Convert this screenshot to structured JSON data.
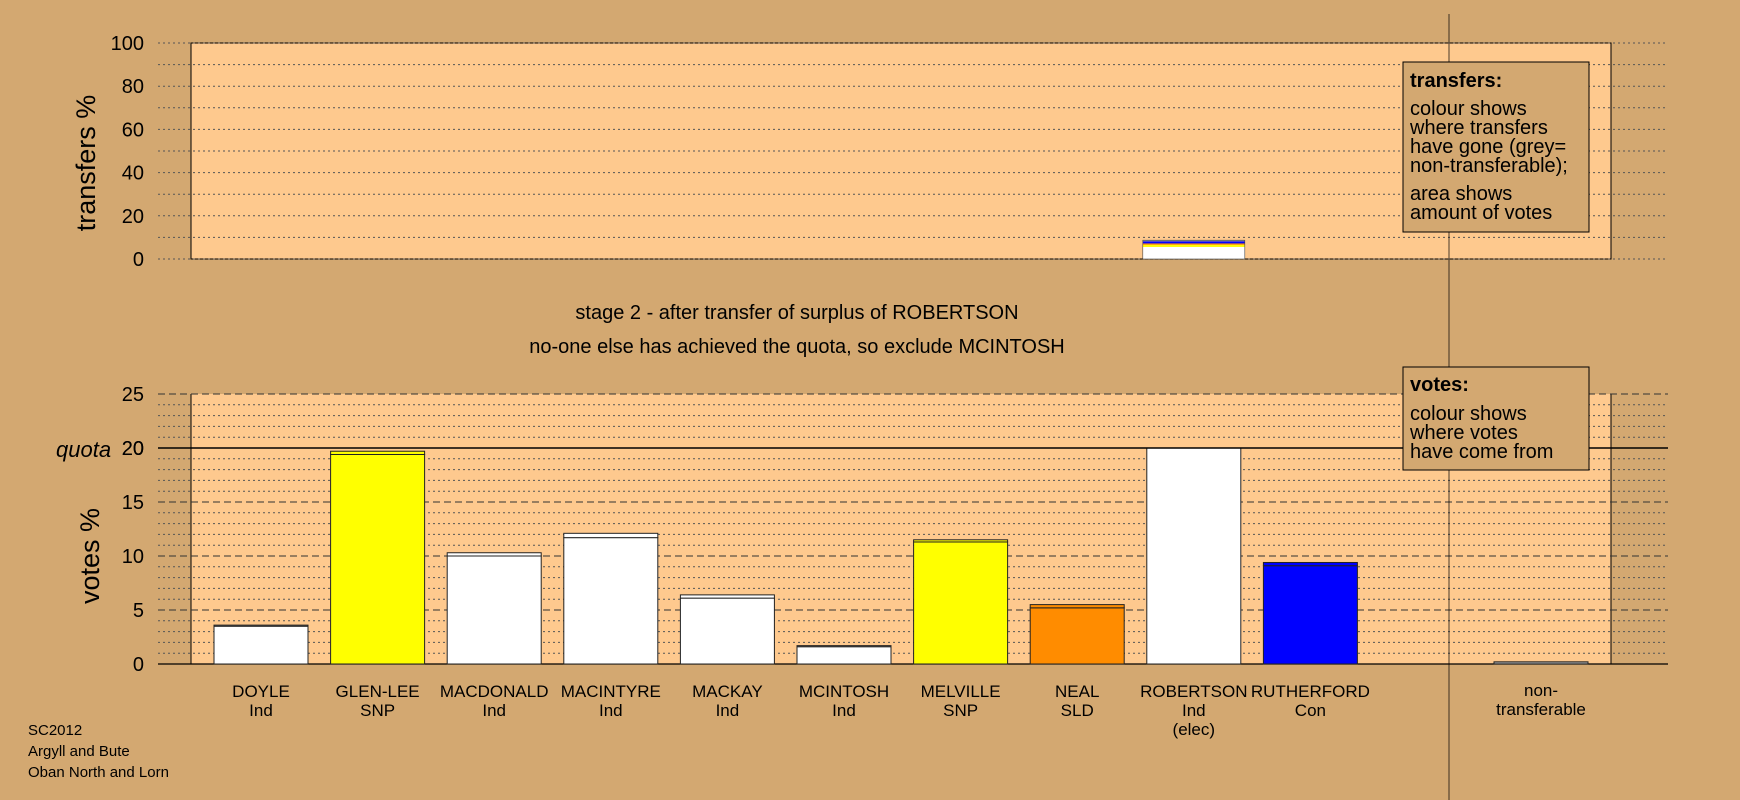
{
  "meta": {
    "code": "SC2012",
    "council": "Argyll and Bute",
    "ward": "Oban North and Lorn"
  },
  "stage": {
    "line1": "stage 2 - after transfer of surplus of ROBERTSON",
    "line2": "no-one else has achieved the quota, so exclude MCINTOSH"
  },
  "legends": {
    "transfers": {
      "title": "transfers:",
      "lines": [
        "colour shows",
        "where transfers",
        "have gone (grey=",
        "non-transferable);",
        "area shows",
        "amount of votes"
      ]
    },
    "votes": {
      "title": "votes:",
      "lines": [
        "colour shows",
        "where votes",
        "have come from"
      ]
    }
  },
  "colors": {
    "background": "#d3a871",
    "plot": "#fec98e",
    "Ind": "#ffffff",
    "SNP": "#ffff00",
    "SLD": "#ff8c00",
    "Con": "#0000ff",
    "non-transferable": "#a0a0a0"
  },
  "chart_data": [
    {
      "type": "bar",
      "name": "transfers",
      "ylabel": "transfers %",
      "ylim": [
        0,
        100
      ],
      "yticks": [
        0,
        20,
        40,
        60,
        80,
        100
      ],
      "grid": "dotted every 10",
      "candidate": "ROBERTSON",
      "transfer_stack": [
        {
          "party": "Ind",
          "value": 5.6
        },
        {
          "party": "SNP",
          "value": 1.0
        },
        {
          "party": "SLD",
          "value": 0.6
        },
        {
          "party": "Con",
          "value": 1.0
        },
        {
          "party": "non-transferable",
          "value": 0.5
        }
      ]
    },
    {
      "type": "bar",
      "name": "votes",
      "ylabel": "votes %",
      "ylim": [
        0,
        25
      ],
      "yticks": [
        0,
        5,
        10,
        15,
        20,
        25
      ],
      "quota": 20,
      "quota_label": "quota",
      "grid": "dashed every 5, dotted every 1",
      "categories": [
        {
          "name": "DOYLE",
          "party": "Ind",
          "base": 3.5,
          "transfer": 0.1
        },
        {
          "name": "GLEN-LEE",
          "party": "SNP",
          "base": 19.4,
          "transfer": 0.3
        },
        {
          "name": "MACDONALD",
          "party": "Ind",
          "base": 10.0,
          "transfer": 0.3
        },
        {
          "name": "MACINTYRE",
          "party": "Ind",
          "base": 11.7,
          "transfer": 0.4
        },
        {
          "name": "MACKAY",
          "party": "Ind",
          "base": 6.1,
          "transfer": 0.3
        },
        {
          "name": "MCINTOSH",
          "party": "Ind",
          "base": 1.6,
          "transfer": 0.1
        },
        {
          "name": "MELVILLE",
          "party": "SNP",
          "base": 11.3,
          "transfer": 0.2
        },
        {
          "name": "NEAL",
          "party": "SLD",
          "base": 5.2,
          "transfer": 0.3
        },
        {
          "name": "ROBERTSON",
          "party": "Ind",
          "note": "(elec)",
          "base": 20.0,
          "transfer": 0
        },
        {
          "name": "RUTHERFORD",
          "party": "Con",
          "base": 9.1,
          "transfer": 0.3
        }
      ],
      "nontransferable": {
        "label_line1": "non-",
        "label_line2": "transferable",
        "value": 0.2
      }
    }
  ]
}
